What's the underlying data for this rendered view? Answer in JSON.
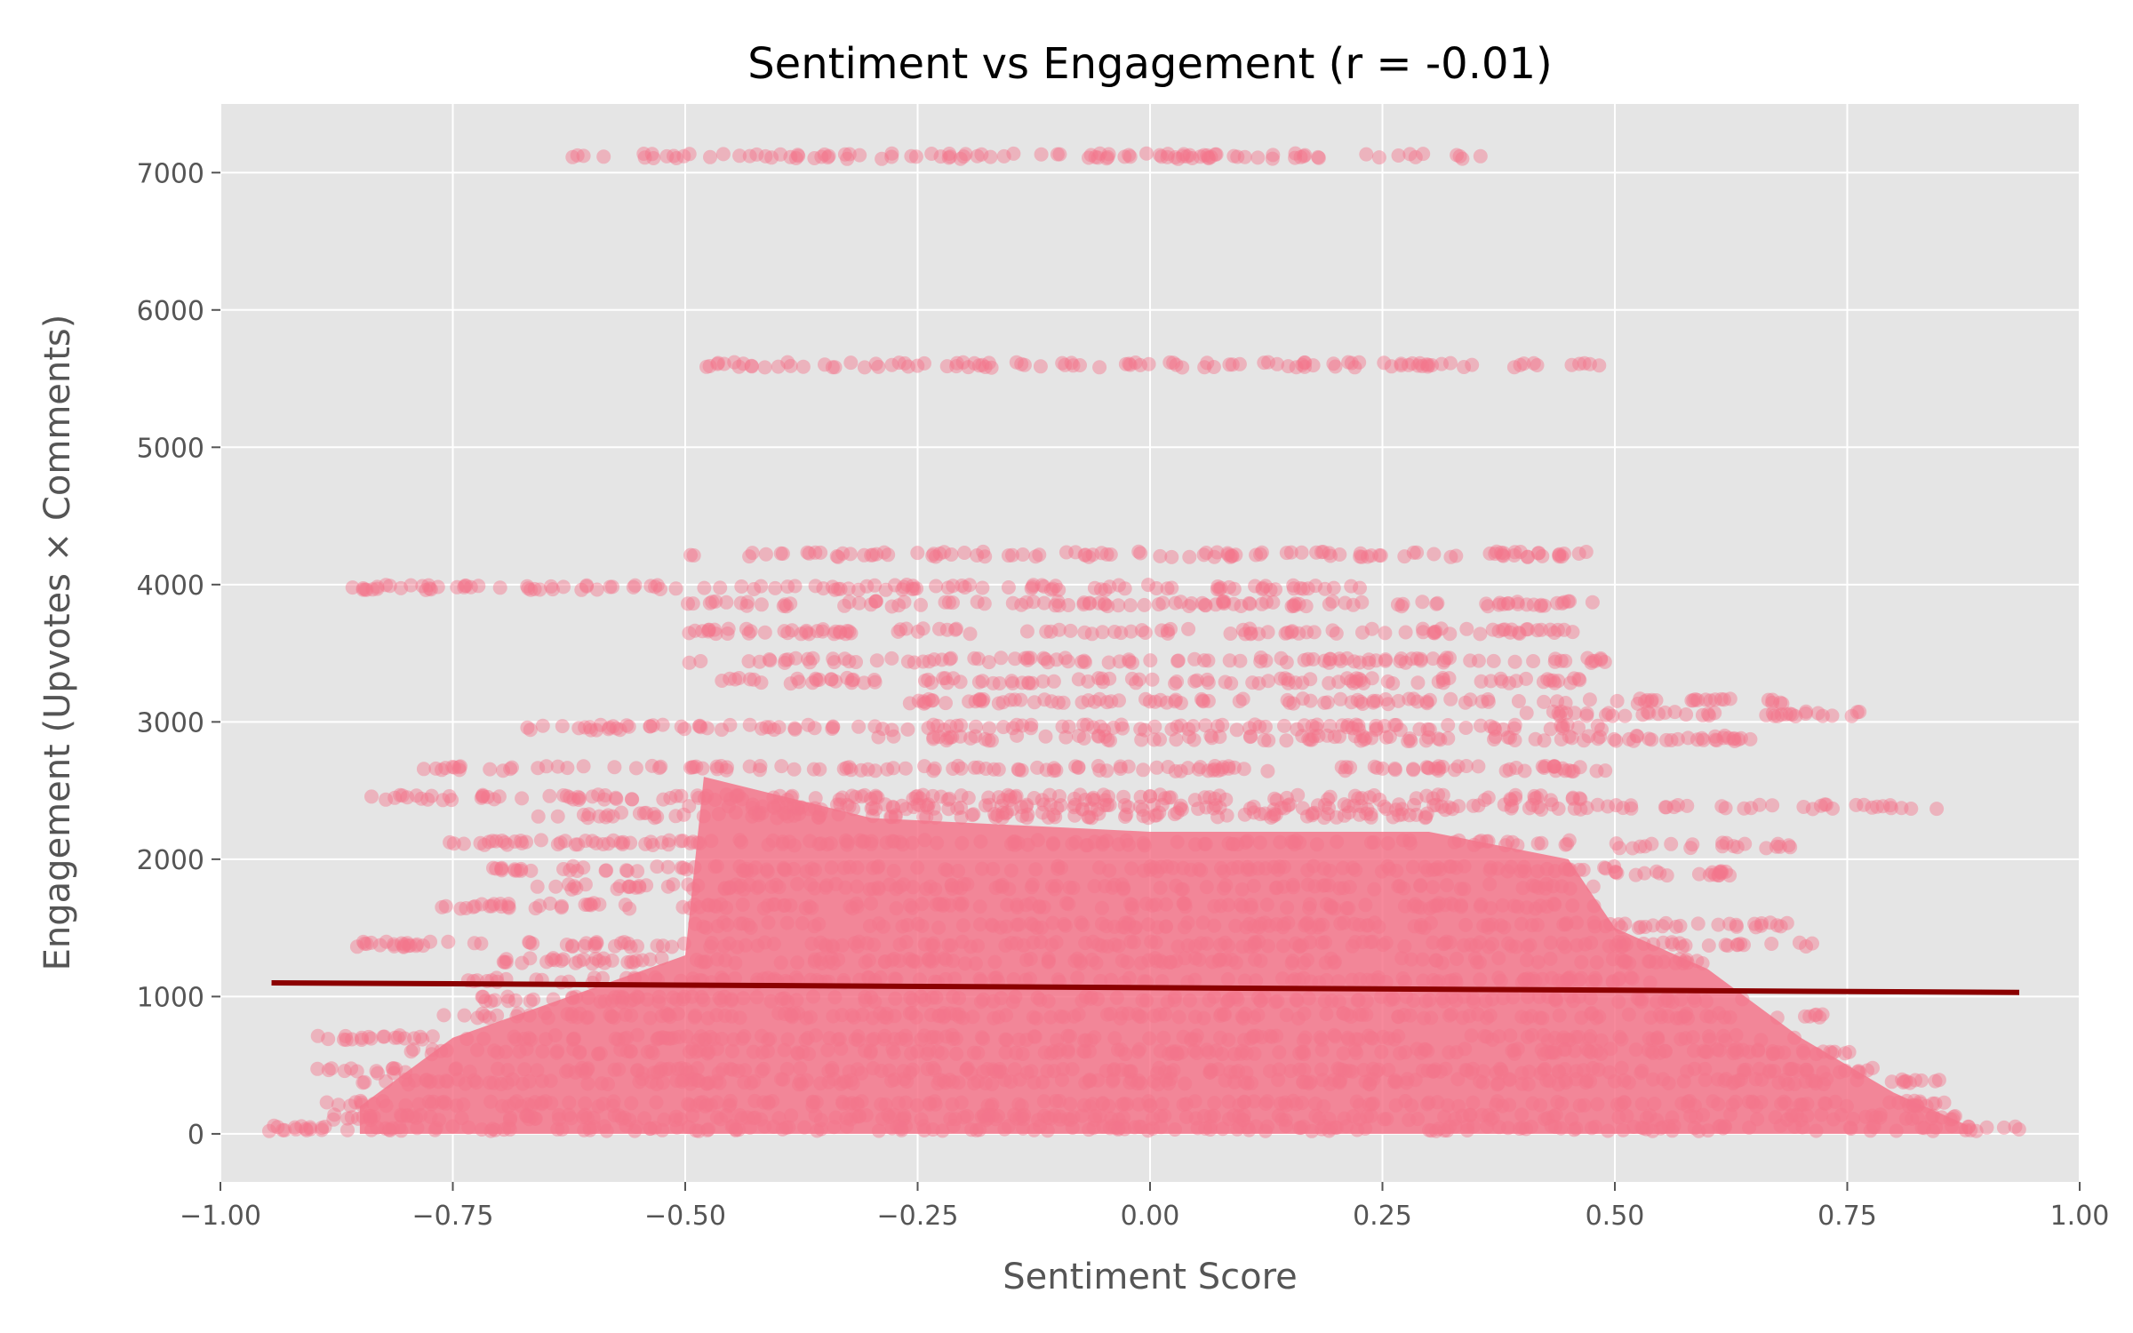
{
  "chart_data": {
    "type": "scatter",
    "title": "Sentiment vs Engagement (r = -0.01)",
    "xlabel": "Sentiment Score",
    "ylabel": "Engagement (Upvotes × Comments)",
    "xlim": [
      -1.0,
      1.0
    ],
    "ylim": [
      -350,
      7500
    ],
    "x_ticks": [
      -1.0,
      -0.75,
      -0.5,
      -0.25,
      0.0,
      0.25,
      0.5,
      0.75,
      1.0
    ],
    "x_tick_labels": [
      "−1.00",
      "−0.75",
      "−0.50",
      "−0.25",
      "0.00",
      "0.25",
      "0.50",
      "0.75",
      "1.00"
    ],
    "y_ticks": [
      0,
      1000,
      2000,
      3000,
      4000,
      5000,
      6000,
      7000
    ],
    "y_tick_labels": [
      "0",
      "1000",
      "2000",
      "3000",
      "4000",
      "5000",
      "6000",
      "7000"
    ],
    "grid": true,
    "colors": {
      "points": "#f4758b",
      "trend": "#8b0000",
      "plot_bg": "#e5e5e5",
      "grid": "#ffffff"
    },
    "trend_line": {
      "x": [
        -0.945,
        0.935
      ],
      "y": [
        1100,
        1030
      ]
    },
    "point_bands": [
      {
        "y": 7120,
        "x_range": [
          -0.63,
          0.36
        ]
      },
      {
        "y": 5600,
        "x_range": [
          -0.49,
          0.49
        ]
      },
      {
        "y": 4220,
        "x_range": [
          -0.5,
          0.48
        ]
      },
      {
        "y": 3980,
        "x_range": [
          -0.86,
          0.25
        ]
      },
      {
        "y": 3860,
        "x_range": [
          -0.5,
          0.48
        ]
      },
      {
        "y": 3660,
        "x_range": [
          -0.51,
          0.47
        ]
      },
      {
        "y": 3450,
        "x_range": [
          -0.5,
          0.49
        ]
      },
      {
        "y": 3300,
        "x_range": [
          -0.49,
          0.49
        ]
      },
      {
        "y": 3150,
        "x_range": [
          -0.26,
          0.69
        ]
      },
      {
        "y": 3060,
        "x_range": [
          0.4,
          0.77
        ]
      },
      {
        "y": 2960,
        "x_range": [
          -0.67,
          0.5
        ]
      },
      {
        "y": 2880,
        "x_range": [
          -0.3,
          0.65
        ]
      },
      {
        "y": 2660,
        "x_range": [
          -0.79,
          0.49
        ]
      },
      {
        "y": 2450,
        "x_range": [
          -0.84,
          0.49
        ]
      },
      {
        "y": 2380,
        "x_range": [
          -0.5,
          0.85
        ]
      },
      {
        "y": 2320,
        "x_range": [
          -0.66,
          0.3
        ]
      },
      {
        "y": 2120,
        "x_range": [
          -0.77,
          0.48
        ]
      },
      {
        "y": 2100,
        "x_range": [
          0.5,
          0.69
        ]
      },
      {
        "y": 1930,
        "x_range": [
          -0.71,
          0.5
        ]
      },
      {
        "y": 1900,
        "x_range": [
          0.5,
          0.63
        ]
      },
      {
        "y": 1800,
        "x_range": [
          -0.66,
          0.48
        ]
      },
      {
        "y": 1660,
        "x_range": [
          -0.77,
          0.48
        ]
      },
      {
        "y": 1520,
        "x_range": [
          -0.5,
          0.7
        ]
      },
      {
        "y": 1380,
        "x_range": [
          -0.86,
          0.73
        ]
      },
      {
        "y": 1260,
        "x_range": [
          -0.7,
          0.6
        ]
      },
      {
        "y": 1120,
        "x_range": [
          -0.74,
          0.55
        ]
      },
      {
        "y": 980,
        "x_range": [
          -0.73,
          0.65
        ]
      },
      {
        "y": 860,
        "x_range": [
          -0.76,
          0.74
        ]
      },
      {
        "y": 700,
        "x_range": [
          -0.9,
          0.7
        ]
      },
      {
        "y": 600,
        "x_range": [
          -0.8,
          0.77
        ]
      },
      {
        "y": 460,
        "x_range": [
          -0.9,
          0.78
        ]
      },
      {
        "y": 380,
        "x_range": [
          -0.85,
          0.85
        ]
      },
      {
        "y": 220,
        "x_range": [
          -0.89,
          0.86
        ]
      },
      {
        "y": 120,
        "x_range": [
          -0.88,
          0.88
        ]
      },
      {
        "y": 40,
        "x_range": [
          -0.95,
          0.94
        ]
      }
    ]
  }
}
